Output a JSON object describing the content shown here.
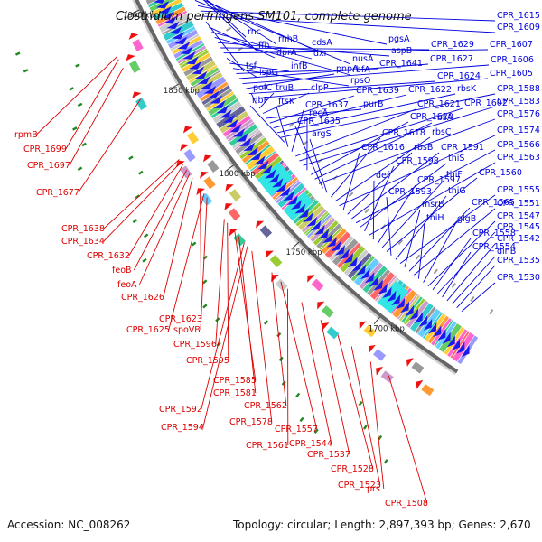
{
  "title": "Clostridium perfringens SM101, complete genome",
  "footer": {
    "accession": "Accession: NC_008262",
    "summary": "Topology: circular; Length: 2,897,393 bp; Genes: 2,670"
  },
  "colors": {
    "forward_label": "#0000dd",
    "reverse_label": "#dd0000",
    "forward_arrow": "#1a1aee",
    "reverse_arrow": "#ee1111",
    "backbone": "#888888",
    "rna": "#228822"
  },
  "kbp_ticks": [
    {
      "label": "1900 kbp"
    },
    {
      "label": "1850 kbp"
    },
    {
      "label": "1800 kbp"
    },
    {
      "label": "1750 kbp"
    },
    {
      "label": "1700 kbp"
    }
  ],
  "forward_labels": [
    {
      "text": "rnc"
    },
    {
      "text": "ffh"
    },
    {
      "text": "rnhB"
    },
    {
      "text": "cdsA"
    },
    {
      "text": "nusA"
    },
    {
      "text": "pgsA"
    },
    {
      "text": "CPR_1615"
    },
    {
      "text": "CPR_1609"
    },
    {
      "text": "tsf"
    },
    {
      "text": "dprA"
    },
    {
      "text": "dxr"
    },
    {
      "text": "rbfA"
    },
    {
      "text": "aspB"
    },
    {
      "text": "CPR_1629"
    },
    {
      "text": "CPR_1607"
    },
    {
      "text": "ispG"
    },
    {
      "text": "infB"
    },
    {
      "text": "rpsO"
    },
    {
      "text": "CPR_1641"
    },
    {
      "text": "CPR_1627"
    },
    {
      "text": "CPR_1606"
    },
    {
      "text": "pnpA"
    },
    {
      "text": "CPR_1624"
    },
    {
      "text": "CPR_1605"
    },
    {
      "text": "polC"
    },
    {
      "text": "truB"
    },
    {
      "text": "clpP"
    },
    {
      "text": "purB"
    },
    {
      "text": "CPR_1639"
    },
    {
      "text": "CPR_1622"
    },
    {
      "text": "rbsK"
    },
    {
      "text": "CPR_1588"
    },
    {
      "text": "ribF"
    },
    {
      "text": "ftsK"
    },
    {
      "text": "CPR_1637"
    },
    {
      "text": "CPR_1621"
    },
    {
      "text": "CPR_1602"
    },
    {
      "text": "CPR_1583"
    },
    {
      "text": "recA"
    },
    {
      "text": "CPR_1620"
    },
    {
      "text": "rbsA"
    },
    {
      "text": "CPR_1576"
    },
    {
      "text": "CPR_1635"
    },
    {
      "text": "argS"
    },
    {
      "text": "CPR_1618"
    },
    {
      "text": "rbsC"
    },
    {
      "text": "CPR_1574"
    },
    {
      "text": "CPR_1616"
    },
    {
      "text": "rbsB"
    },
    {
      "text": "CPR_1591"
    },
    {
      "text": "CPR_1566"
    },
    {
      "text": "thiS"
    },
    {
      "text": "CPR_1598"
    },
    {
      "text": "CPR_1563"
    },
    {
      "text": "def"
    },
    {
      "text": "CPR_1597"
    },
    {
      "text": "thiF"
    },
    {
      "text": "CPR_1560"
    },
    {
      "text": "CPR_1593"
    },
    {
      "text": "thiG"
    },
    {
      "text": "CPR_1555"
    },
    {
      "text": "msrB"
    },
    {
      "text": "CPR_1565"
    },
    {
      "text": "CPR_1551"
    },
    {
      "text": "thiH"
    },
    {
      "text": "glgB"
    },
    {
      "text": "CPR_1547"
    },
    {
      "text": "CPR_1558"
    },
    {
      "text": "CPR_1545"
    },
    {
      "text": "CPR_1554"
    },
    {
      "text": "CPR_1542"
    },
    {
      "text": "dinB"
    },
    {
      "text": "CPR_1535"
    },
    {
      "text": "CPR_1530"
    }
  ],
  "reverse_labels": [
    {
      "text": "rpmB"
    },
    {
      "text": "CPR_1699"
    },
    {
      "text": "CPR_1697"
    },
    {
      "text": "CPR_1677"
    },
    {
      "text": "CPR_1638"
    },
    {
      "text": "CPR_1634"
    },
    {
      "text": "CPR_1632"
    },
    {
      "text": "feoB"
    },
    {
      "text": "feoA"
    },
    {
      "text": "CPR_1626"
    },
    {
      "text": "CPR_1623"
    },
    {
      "text": "CPR_1625"
    },
    {
      "text": "spoVB"
    },
    {
      "text": "CPR_1596"
    },
    {
      "text": "CPR_1595"
    },
    {
      "text": "CPR_1585"
    },
    {
      "text": "CPR_1581"
    },
    {
      "text": "CPR_1592"
    },
    {
      "text": "CPR_1594"
    },
    {
      "text": "CPR_1578"
    },
    {
      "text": "CPR_1562"
    },
    {
      "text": "CPR_1557"
    },
    {
      "text": "CPR_1561"
    },
    {
      "text": "CPR_1544"
    },
    {
      "text": "CPR_1537"
    },
    {
      "text": "CPR_1528"
    },
    {
      "text": "CPR_1523"
    },
    {
      "text": "prs"
    },
    {
      "text": "CPR_1508"
    }
  ]
}
